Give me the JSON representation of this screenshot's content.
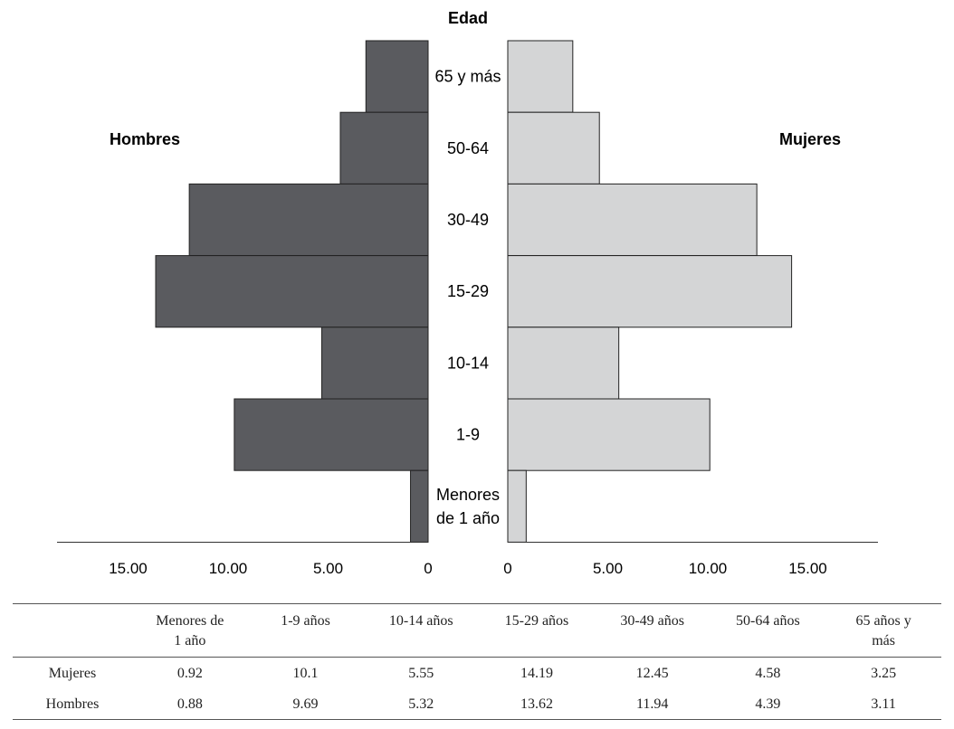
{
  "chart_data": {
    "type": "bar",
    "subtype": "population-pyramid",
    "title": "Edad",
    "categories": [
      "65 y más",
      "50-64",
      "30-49",
      "15-29",
      "10-14",
      "1-9",
      "Menores de 1 año"
    ],
    "category_lines": [
      [
        "65 y más"
      ],
      [
        "50-64"
      ],
      [
        "30-49"
      ],
      [
        "15-29"
      ],
      [
        "10-14"
      ],
      [
        "1-9"
      ],
      [
        "Menores",
        "de 1 año"
      ]
    ],
    "series": [
      {
        "name": "Hombres",
        "side": "left",
        "color": "#5a5b5f",
        "values": [
          3.11,
          4.39,
          11.94,
          13.62,
          5.32,
          9.69,
          0.88
        ]
      },
      {
        "name": "Mujeres",
        "side": "right",
        "color": "#d4d5d6",
        "values": [
          3.25,
          4.58,
          12.45,
          14.19,
          5.55,
          10.1,
          0.92
        ]
      }
    ],
    "left_ticks": [
      "15.00",
      "10.00",
      "5.00",
      "0"
    ],
    "left_tick_values": [
      15,
      10,
      5,
      0
    ],
    "right_ticks": [
      "0",
      "5.00",
      "10.00",
      "15.00"
    ],
    "right_tick_values": [
      0,
      5,
      10,
      15
    ],
    "xlim": [
      0,
      18.5
    ],
    "legend_placement": "top-left and top-right"
  },
  "table": {
    "headers": [
      "",
      "Menores de\n1 año",
      "1-9 años",
      "10-14 años",
      "15-29 años",
      "30-49 años",
      "50-64 años",
      "65 años y\nmás"
    ],
    "rows": [
      {
        "label": "Mujeres",
        "values": [
          "0.92",
          "10.1",
          "5.55",
          "14.19",
          "12.45",
          "4.58",
          "3.25"
        ]
      },
      {
        "label": "Hombres",
        "values": [
          "0.88",
          "9.69",
          "5.32",
          "13.62",
          "11.94",
          "4.39",
          "3.11"
        ]
      }
    ]
  }
}
